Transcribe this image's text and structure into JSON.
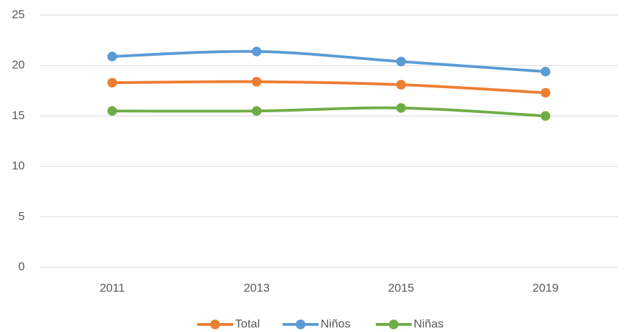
{
  "chart_data": {
    "type": "line",
    "categories": [
      "2011",
      "2013",
      "2015",
      "2019"
    ],
    "series": [
      {
        "name": "Total",
        "color": "#ed7d31",
        "values": [
          18.3,
          18.4,
          18.1,
          17.3
        ]
      },
      {
        "name": "Niños",
        "color": "#5b9bd5",
        "values": [
          20.9,
          21.4,
          20.4,
          19.4
        ]
      },
      {
        "name": "Niñas",
        "color": "#70ad47",
        "values": [
          15.5,
          15.5,
          15.8,
          15.0
        ]
      }
    ],
    "ylim": [
      0,
      25
    ],
    "yticks": [
      0,
      5,
      10,
      15,
      20,
      25
    ],
    "grid": true,
    "smooth": true,
    "legend": "bottom"
  }
}
